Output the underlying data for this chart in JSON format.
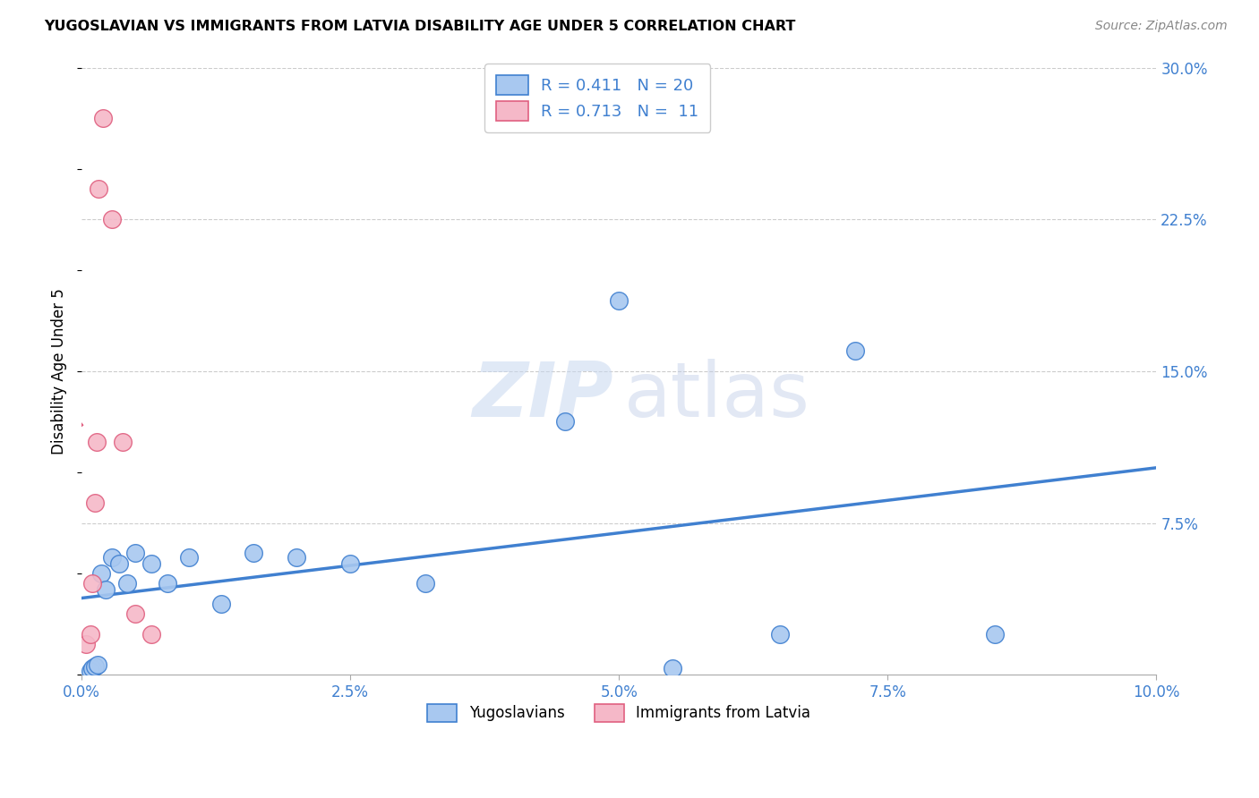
{
  "title": "YUGOSLAVIAN VS IMMIGRANTS FROM LATVIA DISABILITY AGE UNDER 5 CORRELATION CHART",
  "source": "Source: ZipAtlas.com",
  "ylabel": "Disability Age Under 5",
  "x_tick_values": [
    0.0,
    2.5,
    5.0,
    7.5,
    10.0
  ],
  "y_tick_values": [
    0.0,
    7.5,
    15.0,
    22.5,
    30.0
  ],
  "xlim": [
    0.0,
    10.0
  ],
  "ylim": [
    0.0,
    30.0
  ],
  "yug_x": [
    0.08,
    0.1,
    0.12,
    0.15,
    0.18,
    0.22,
    0.28,
    0.35,
    0.42,
    0.5,
    0.65,
    0.8,
    1.0,
    1.3,
    1.6,
    2.0,
    2.5,
    3.2,
    4.5,
    5.0,
    6.5,
    7.2,
    8.5,
    5.5
  ],
  "yug_y": [
    0.2,
    0.3,
    0.4,
    0.5,
    5.0,
    4.2,
    5.8,
    5.5,
    4.5,
    6.0,
    5.5,
    4.5,
    5.8,
    3.5,
    6.0,
    5.8,
    5.5,
    4.5,
    12.5,
    18.5,
    2.0,
    16.0,
    2.0,
    0.3
  ],
  "lat_x": [
    0.04,
    0.08,
    0.1,
    0.12,
    0.14,
    0.16,
    0.2,
    0.28,
    0.38,
    0.5,
    0.65
  ],
  "lat_y": [
    1.5,
    2.0,
    4.5,
    8.5,
    11.5,
    24.0,
    27.5,
    22.5,
    11.5,
    3.0,
    2.0
  ],
  "yug_color": "#a8c8f0",
  "lat_color": "#f5b8c8",
  "yug_line_color": "#4080d0",
  "lat_line_color": "#e06080",
  "watermark_zip_color": "#c8d8f0",
  "watermark_atlas_color": "#c0cce8",
  "legend_items_bottom": [
    "Yugoslavians",
    "Immigrants from Latvia"
  ],
  "background_color": "#ffffff",
  "grid_color": "#cccccc"
}
